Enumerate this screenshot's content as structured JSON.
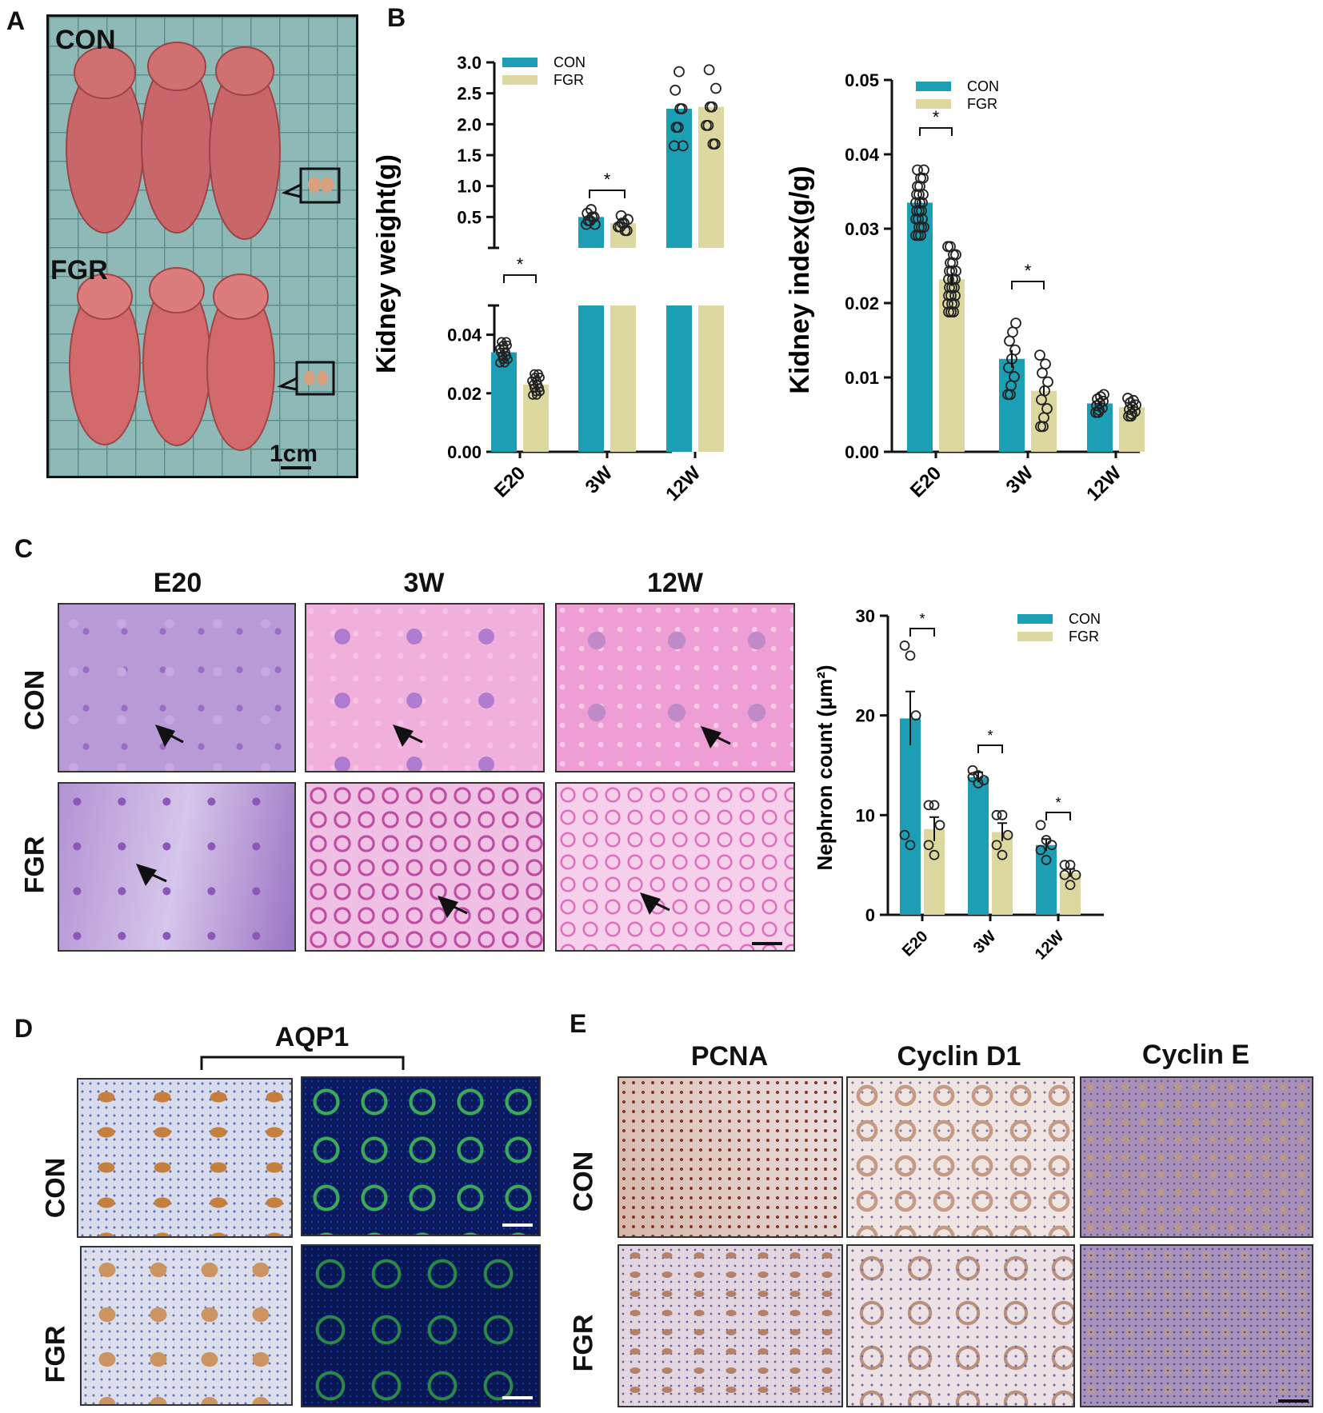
{
  "panels": {
    "A": {
      "label": "A",
      "group_top": "CON",
      "group_bottom": "FGR",
      "scale_bar": "1cm"
    },
    "B": {
      "label": "B"
    },
    "C": {
      "label": "C",
      "columns": [
        "E20",
        "3W",
        "12W"
      ],
      "rows": [
        "CON",
        "FGR"
      ]
    },
    "D": {
      "label": "D",
      "header": "AQP1",
      "rows": [
        "CON",
        "FGR"
      ]
    },
    "E": {
      "label": "E",
      "columns": [
        "PCNA",
        "Cyclin D1",
        "Cyclin E"
      ],
      "rows": [
        "CON",
        "FGR"
      ]
    }
  },
  "colors": {
    "con": "#1c9fb4",
    "fgr": "#dcd8a0",
    "he_con_e20": "#b49ad2",
    "he_pink": "#ee9ed6",
    "ihc_bg": "#e6d9e0",
    "if_bg": "#0a1a5c",
    "photo_grid": "#8eb8b8"
  },
  "chart_data": [
    {
      "type": "bar",
      "panel": "B-left",
      "categories": [
        "E20",
        "3W",
        "12W"
      ],
      "series": [
        {
          "name": "CON",
          "values": [
            0.034,
            0.5,
            2.25
          ],
          "errors": [
            0.001,
            0.03,
            0.12
          ]
        },
        {
          "name": "FGR",
          "values": [
            0.023,
            0.4,
            2.28
          ],
          "errors": [
            0.001,
            0.03,
            0.15
          ]
        }
      ],
      "ylabel": "Kidney weight(g)",
      "broken_axis": true,
      "ylim_lower": [
        0,
        0.05
      ],
      "ylim_upper": [
        0,
        3.0
      ],
      "yticks_lower": [
        "0.00",
        "0.02",
        "0.04"
      ],
      "yticks_upper": [
        "0.5",
        "1.0",
        "1.5",
        "2.0",
        "2.5",
        "3.0"
      ],
      "significance": [
        "*",
        "*",
        ""
      ],
      "legend": "top-left"
    },
    {
      "type": "bar",
      "panel": "B-right",
      "categories": [
        "E20",
        "3W",
        "12W"
      ],
      "series": [
        {
          "name": "CON",
          "values": [
            0.0335,
            0.0125,
            0.0065
          ],
          "errors": [
            0.0008,
            0.0012,
            0.0003
          ]
        },
        {
          "name": "FGR",
          "values": [
            0.0232,
            0.0082,
            0.006
          ],
          "errors": [
            0.0009,
            0.0006,
            0.0003
          ]
        }
      ],
      "ylabel": "Kidney index(g/g)",
      "ylim": [
        0,
        0.05
      ],
      "yticks": [
        "0.00",
        "0.01",
        "0.02",
        "0.03",
        "0.04",
        "0.05"
      ],
      "significance": [
        "*",
        "*",
        ""
      ],
      "legend": "top-left"
    },
    {
      "type": "bar",
      "panel": "C-right",
      "categories": [
        "E20",
        "3W",
        "12W"
      ],
      "series": [
        {
          "name": "CON",
          "values": [
            19.7,
            13.8,
            7.0
          ],
          "errors": [
            2.7,
            0.5,
            0.6
          ],
          "points": [
            [
              27,
              26,
              20,
              8,
              7
            ],
            [
              14.5,
              14,
              13.5,
              13.8,
              13.2
            ],
            [
              9,
              7.5,
              7,
              6.5,
              5.5
            ]
          ]
        },
        {
          "name": "FGR",
          "values": [
            8.6,
            8.3,
            4.2
          ],
          "errors": [
            1.2,
            0.9,
            0.4
          ],
          "points": [
            [
              11,
              11,
              9,
              7,
              6
            ],
            [
              10,
              10,
              8,
              7,
              6
            ],
            [
              5,
              5,
              4,
              4,
              3
            ]
          ]
        }
      ],
      "ylabel": "Nephron count (μm²)",
      "ylim": [
        0,
        30
      ],
      "yticks": [
        "0",
        "10",
        "20",
        "30"
      ],
      "significance": [
        "*",
        "*",
        "*"
      ],
      "legend": "top-right"
    }
  ]
}
